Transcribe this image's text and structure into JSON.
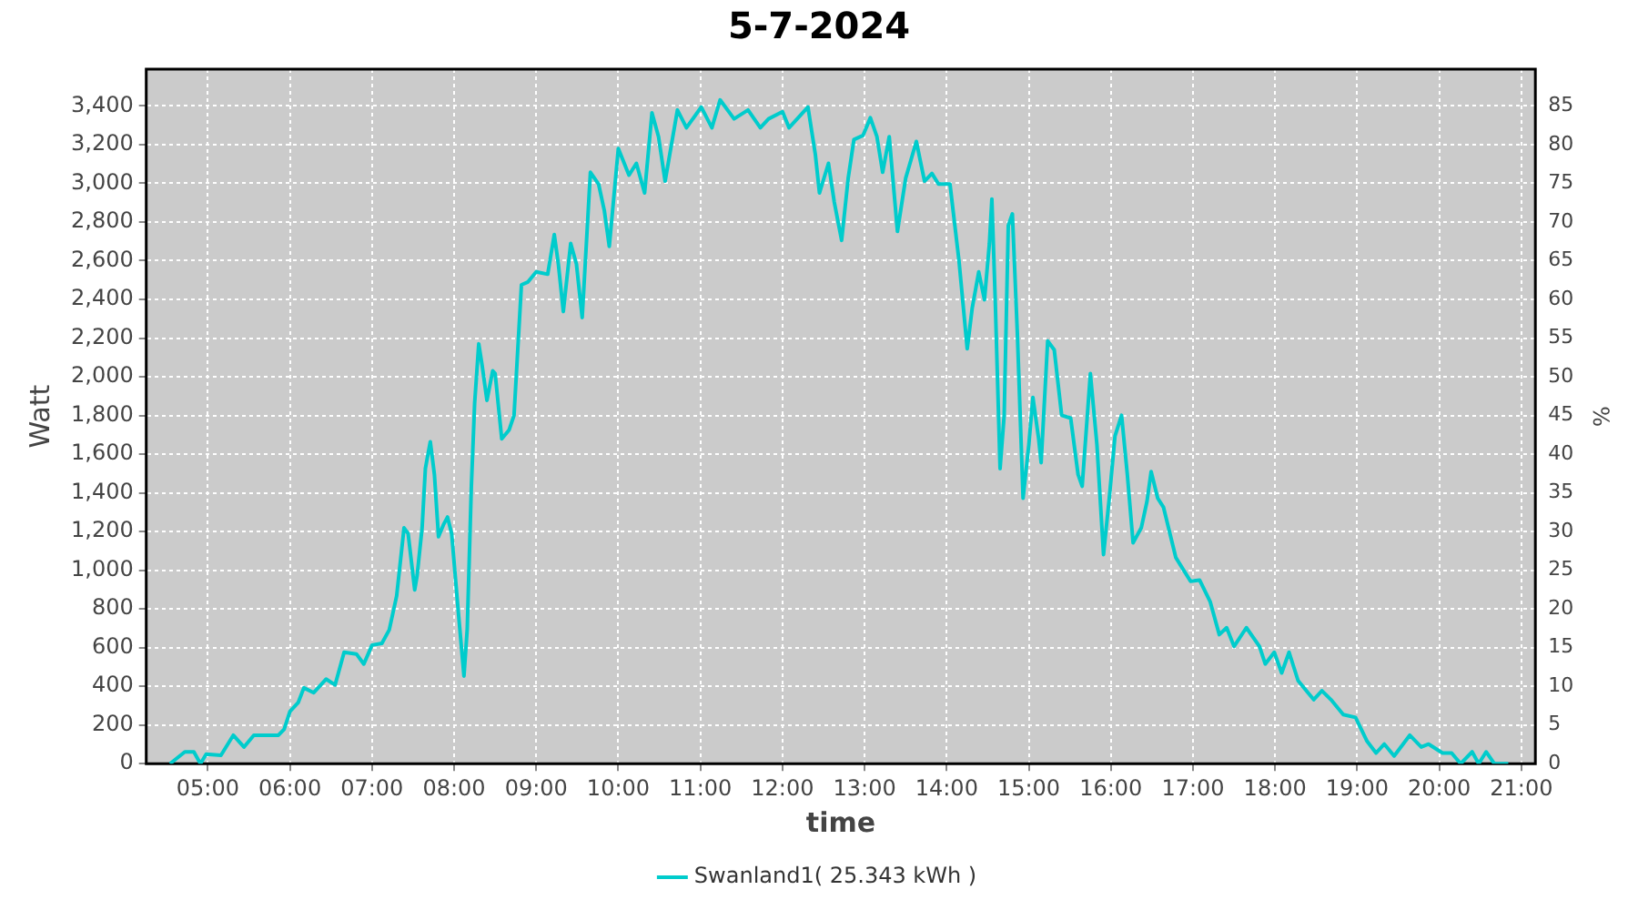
{
  "chart_data": {
    "type": "line",
    "title": "5-7-2024",
    "xlabel": "time",
    "ylabel": "Watt",
    "y2label": "%",
    "x": [
      4.54,
      4.72,
      4.83,
      4.91,
      4.98,
      5.16,
      5.31,
      5.44,
      5.56,
      5.86,
      5.93,
      6.0,
      6.1,
      6.17,
      6.29,
      6.44,
      6.55,
      6.66,
      6.81,
      6.9,
      7.0,
      7.12,
      7.21,
      7.3,
      7.39,
      7.44,
      7.52,
      7.55,
      7.61,
      7.65,
      7.71,
      7.76,
      7.81,
      7.87,
      7.92,
      7.97,
      8.05,
      8.12,
      8.16,
      8.21,
      8.25,
      8.3,
      8.34,
      8.4,
      8.47,
      8.5,
      8.58,
      8.67,
      8.73,
      8.82,
      8.9,
      9.0,
      9.14,
      9.22,
      9.27,
      9.33,
      9.42,
      9.49,
      9.56,
      9.66,
      9.76,
      9.83,
      9.89,
      10.0,
      10.13,
      10.22,
      10.32,
      10.41,
      10.49,
      10.57,
      10.72,
      10.83,
      11.01,
      11.14,
      11.24,
      11.41,
      11.58,
      11.73,
      11.83,
      12.0,
      12.08,
      12.31,
      12.4,
      12.45,
      12.56,
      12.63,
      12.72,
      12.8,
      12.87,
      12.98,
      13.07,
      13.15,
      13.22,
      13.3,
      13.4,
      13.5,
      13.63,
      13.73,
      13.82,
      13.9,
      14.04,
      14.15,
      14.25,
      14.31,
      14.39,
      14.46,
      14.52,
      14.55,
      14.59,
      14.65,
      14.7,
      14.75,
      14.8,
      14.86,
      14.93,
      15.0,
      15.05,
      15.12,
      15.15,
      15.23,
      15.31,
      15.4,
      15.51,
      15.6,
      15.65,
      15.75,
      15.83,
      15.91,
      15.98,
      16.05,
      16.13,
      16.2,
      16.27,
      16.37,
      16.44,
      16.49,
      16.57,
      16.64,
      16.79,
      16.97,
      17.08,
      17.21,
      17.32,
      17.41,
      17.5,
      17.65,
      17.81,
      17.88,
      17.99,
      18.08,
      18.17,
      18.28,
      18.47,
      18.57,
      18.68,
      18.83,
      18.98,
      19.12,
      19.23,
      19.33,
      19.45,
      19.64,
      19.78,
      19.87,
      20.04,
      20.15,
      20.26,
      20.4,
      20.48,
      20.57,
      20.67,
      20.84
    ],
    "series": [
      {
        "name": "Swanland1( 25.343 kWh )",
        "color": "#00cccc",
        "values": [
          0,
          61,
          61,
          0,
          49,
          43,
          147,
          86,
          147,
          147,
          178,
          270,
          315,
          392,
          367,
          437,
          407,
          576,
          567,
          515,
          613,
          622,
          692,
          867,
          1219,
          1189,
          898,
          974,
          1219,
          1526,
          1664,
          1495,
          1173,
          1235,
          1275,
          1189,
          790,
          453,
          698,
          1434,
          1863,
          2170,
          2062,
          1878,
          2031,
          2016,
          1679,
          1725,
          1801,
          2475,
          2490,
          2542,
          2530,
          2735,
          2582,
          2337,
          2689,
          2582,
          2306,
          3057,
          2996,
          2858,
          2674,
          3180,
          3042,
          3103,
          2950,
          3364,
          3241,
          3011,
          3379,
          3287,
          3394,
          3287,
          3431,
          3333,
          3379,
          3287,
          3333,
          3370,
          3287,
          3394,
          3149,
          2950,
          3103,
          2904,
          2705,
          3026,
          3226,
          3247,
          3339,
          3241,
          3057,
          3241,
          2751,
          3026,
          3216,
          3011,
          3051,
          2996,
          2996,
          2598,
          2145,
          2353,
          2542,
          2398,
          2689,
          2919,
          2413,
          1525,
          1801,
          2781,
          2842,
          2230,
          1372,
          1648,
          1893,
          1679,
          1556,
          2185,
          2139,
          1801,
          1786,
          1495,
          1434,
          2016,
          1648,
          1081,
          1372,
          1694,
          1801,
          1495,
          1142,
          1219,
          1357,
          1510,
          1372,
          1326,
          1066,
          943,
          949,
          836,
          667,
          703,
          606,
          703,
          606,
          515,
          576,
          469,
          576,
          429,
          331,
          377,
          331,
          254,
          239,
          116,
          55,
          101,
          40,
          147,
          86,
          101,
          55,
          55,
          0,
          61,
          0,
          61,
          0,
          0
        ]
      }
    ],
    "xlim": [
      4.25,
      21.17
    ],
    "xticks": [
      {
        "value": 5,
        "label": "05:00"
      },
      {
        "value": 6,
        "label": "06:00"
      },
      {
        "value": 7,
        "label": "07:00"
      },
      {
        "value": 8,
        "label": "08:00"
      },
      {
        "value": 9,
        "label": "09:00"
      },
      {
        "value": 10,
        "label": "10:00"
      },
      {
        "value": 11,
        "label": "11:00"
      },
      {
        "value": 12,
        "label": "12:00"
      },
      {
        "value": 13,
        "label": "13:00"
      },
      {
        "value": 14,
        "label": "14:00"
      },
      {
        "value": 15,
        "label": "15:00"
      },
      {
        "value": 16,
        "label": "16:00"
      },
      {
        "value": 17,
        "label": "17:00"
      },
      {
        "value": 18,
        "label": "18:00"
      },
      {
        "value": 19,
        "label": "19:00"
      },
      {
        "value": 20,
        "label": "20:00"
      },
      {
        "value": 21,
        "label": "21:00"
      }
    ],
    "ylim": [
      0,
      3590
    ],
    "yticks": [
      0,
      200,
      400,
      600,
      800,
      {
        "value": 1000,
        "label": "1,000"
      },
      {
        "value": 1200,
        "label": "1,200"
      },
      {
        "value": 1400,
        "label": "1,400"
      },
      {
        "value": 1600,
        "label": "1,600"
      },
      {
        "value": 1800,
        "label": "1,800"
      },
      {
        "value": 2000,
        "label": "2,000"
      },
      {
        "value": 2200,
        "label": "2,200"
      },
      {
        "value": 2400,
        "label": "2,400"
      },
      {
        "value": 2600,
        "label": "2,600"
      },
      {
        "value": 2800,
        "label": "2,800"
      },
      {
        "value": 3000,
        "label": "3,000"
      },
      {
        "value": 3200,
        "label": "3,200"
      },
      {
        "value": 3400,
        "label": "3,400"
      }
    ],
    "y2lim": [
      0,
      89.75
    ],
    "y2ticks": [
      0,
      5,
      10,
      15,
      20,
      25,
      30,
      35,
      40,
      45,
      50,
      55,
      60,
      65,
      70,
      75,
      80,
      85
    ],
    "grid": true,
    "legend": "bottom",
    "marker": "none",
    "line_style": "solid"
  }
}
